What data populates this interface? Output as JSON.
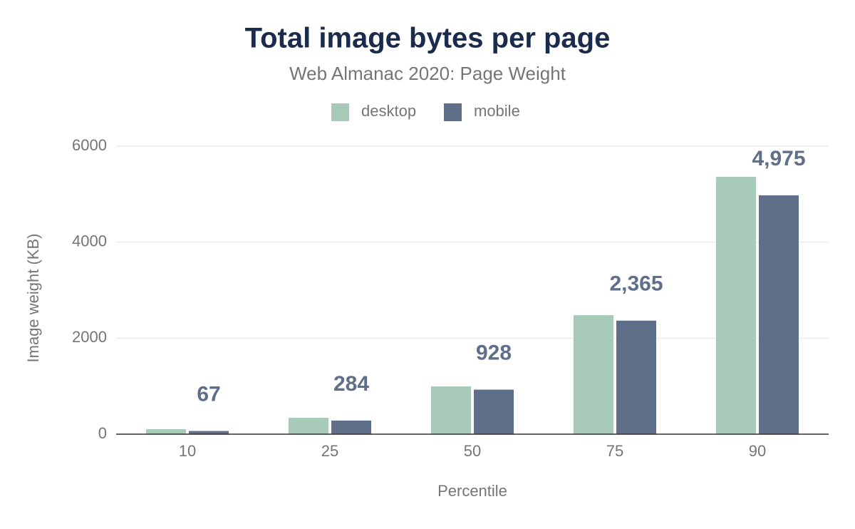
{
  "chart_data": {
    "type": "bar",
    "title": "Total image bytes per page",
    "subtitle": "Web Almanac 2020: Page Weight",
    "x_label": "Percentile",
    "y_label": "Image weight (KB)",
    "categories": [
      "10",
      "25",
      "50",
      "75",
      "90"
    ],
    "series": [
      {
        "name": "desktop",
        "color": "#a8cbb9",
        "values": [
          104,
          342,
          995,
          2480,
          5361
        ]
      },
      {
        "name": "mobile",
        "color": "#5f6f8a",
        "values": [
          67,
          284,
          928,
          2365,
          4975
        ],
        "value_labels": [
          "67",
          "284",
          "928",
          "2,365",
          "4,975"
        ]
      }
    ],
    "ylim": [
      0,
      6000
    ],
    "yticks": [
      0,
      2000,
      4000,
      6000
    ],
    "grid": true
  }
}
